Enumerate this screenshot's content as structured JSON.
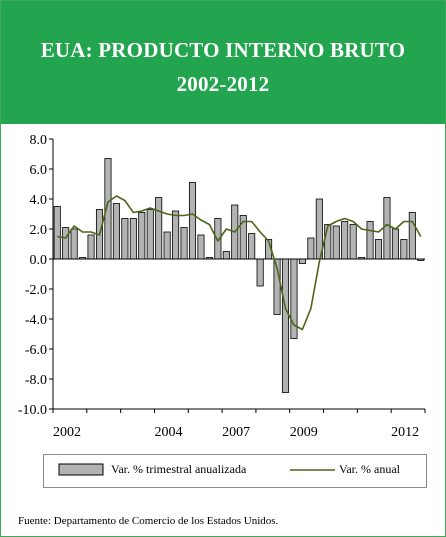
{
  "header": {
    "title_line1": "EUA: PRODUCTO INTERNO BRUTO",
    "title_line2": "2002-2012",
    "bg_color": "#23a550"
  },
  "legend": {
    "bars_label": "Var. % trimestral  anualizada",
    "line_label": "Var. % anual"
  },
  "footer": {
    "source": "Fuente:  Departamento de Comercio de los Estados Unidos."
  },
  "colors": {
    "bar_fill": "#b3b3b3",
    "bar_stroke": "#000000",
    "line": "#4a6618",
    "frame": "#3fa95a"
  },
  "chart_data": {
    "type": "bar",
    "title": "EUA: PRODUCTO INTERNO BRUTO 2002-2012",
    "xlabel": "",
    "ylabel": "",
    "ylim": [
      -10,
      8
    ],
    "y_ticks": [
      "8.0",
      "6.0",
      "4.0",
      "2.0",
      "0.0",
      "-2.0",
      "-4.0",
      "-6.0",
      "-8.0",
      "-10.0"
    ],
    "x_tick_labels": [
      "2002",
      "2004",
      "2007",
      "2009",
      "2012"
    ],
    "grid": false,
    "legend_position": "bottom",
    "series": [
      {
        "name": "Var. % trimestral  anualizada",
        "type": "bar",
        "values": [
          3.5,
          2.1,
          2.0,
          0.1,
          1.6,
          3.3,
          6.7,
          3.7,
          2.7,
          2.7,
          3.1,
          3.3,
          4.1,
          1.8,
          3.2,
          2.1,
          5.1,
          1.6,
          0.1,
          2.7,
          0.5,
          3.6,
          2.9,
          1.7,
          -1.8,
          1.3,
          -3.7,
          -8.9,
          -5.3,
          -0.3,
          1.4,
          4.0,
          2.3,
          2.2,
          2.5,
          2.3,
          0.1,
          2.5,
          1.3,
          4.1,
          2.0,
          1.3,
          3.1,
          -0.1
        ]
      },
      {
        "name": "Var. % anual",
        "type": "line",
        "values": [
          1.5,
          1.4,
          2.2,
          1.8,
          1.8,
          1.6,
          3.8,
          4.2,
          3.9,
          3.1,
          3.2,
          3.4,
          3.2,
          3.0,
          2.9,
          2.9,
          3.0,
          2.6,
          2.3,
          1.2,
          2.0,
          1.8,
          2.5,
          2.5,
          1.8,
          1.2,
          -0.6,
          -3.3,
          -4.4,
          -4.7,
          -3.3,
          -0.2,
          2.2,
          2.5,
          2.7,
          2.5,
          2.0,
          1.9,
          1.8,
          2.3,
          2.0,
          2.5,
          2.5,
          1.5
        ]
      }
    ]
  }
}
